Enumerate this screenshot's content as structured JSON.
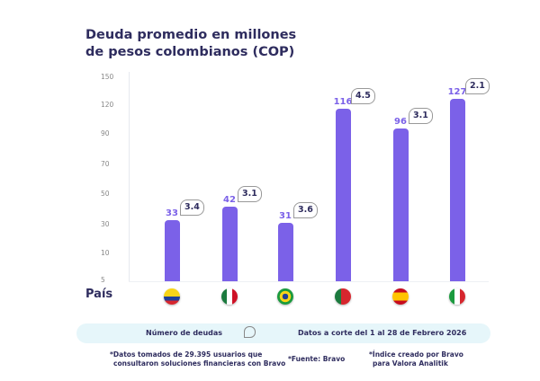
{
  "chart_data": {
    "type": "bar",
    "title": "Deuda promedio en millones de pesos colombianos (COP)",
    "title_lines": [
      "Deuda promedio en millones",
      "de pesos colombianos (COP)"
    ],
    "xlabel": "País",
    "ylabel": "",
    "categories": [
      "Colombia",
      "México",
      "Brasil",
      "Portugal",
      "España",
      "Italia"
    ],
    "values": [
      33,
      42,
      31,
      116,
      96,
      127
    ],
    "value_labels": [
      "33",
      "42",
      "31",
      "116",
      "96",
      "127"
    ],
    "debt_count": [
      3.4,
      3.1,
      3.6,
      4.5,
      3.1,
      2.1
    ],
    "debt_count_labels": [
      "3.4",
      "3.1",
      "3.6",
      "4.5",
      "3.1",
      "2.1"
    ],
    "yticks": [
      "150",
      "120",
      "90",
      "70",
      "50",
      "30",
      "10",
      "5"
    ],
    "ytick_values": [
      150,
      120,
      90,
      70,
      50,
      30,
      10,
      5
    ],
    "ylim": [
      5,
      150
    ],
    "grid": false,
    "bar_color": "#7b61e8"
  },
  "legend": {
    "debt_label": "Número de deudas",
    "date_range": "Datos a corte del 1 al 28 de Febrero 2026"
  },
  "notes": {
    "sample_line1": "*Datos tomados de 29.395 usuarios que",
    "sample_line2": "consultaron soluciones financieras con Bravo",
    "source": "*Fuente: Bravo",
    "index_line1": "*Índice creado por Bravo",
    "index_line2": "para Valora Analitik"
  }
}
